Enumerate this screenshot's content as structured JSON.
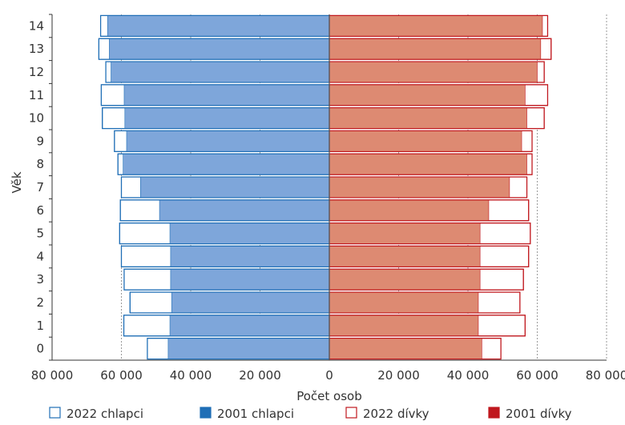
{
  "chart_data": {
    "type": "bar",
    "orientation": "horizontal",
    "chart_style": "population-pyramid",
    "xlabel": "Počet osob",
    "ylabel": "Věk",
    "categories": [
      "0",
      "1",
      "2",
      "3",
      "4",
      "5",
      "6",
      "7",
      "8",
      "9",
      "10",
      "11",
      "12",
      "13",
      "14"
    ],
    "xlim": [
      -80000,
      80000
    ],
    "x_ticks": [
      {
        "value": -80000,
        "label": "80 000"
      },
      {
        "value": -60000,
        "label": "60 000"
      },
      {
        "value": -40000,
        "label": "40 000"
      },
      {
        "value": -20000,
        "label": "20 000"
      },
      {
        "value": 0,
        "label": "0"
      },
      {
        "value": 20000,
        "label": "20 000"
      },
      {
        "value": 40000,
        "label": "40 000"
      },
      {
        "value": 60000,
        "label": "60 000"
      },
      {
        "value": 80000,
        "label": "80 000"
      }
    ],
    "grid": "vertical-dashed",
    "legend_position": "bottom",
    "series": [
      {
        "name": "2022 chlapci",
        "side": "left",
        "style": "outline",
        "color": "#1f6eb6",
        "values": [
          52500,
          59300,
          57500,
          59200,
          60000,
          60500,
          60300,
          60000,
          61000,
          62000,
          65500,
          65800,
          64500,
          66500,
          66000
        ]
      },
      {
        "name": "2001 chlapci",
        "side": "left",
        "style": "filled",
        "color": "#1f6eb6",
        "fill": "#7ea6da",
        "values": [
          46500,
          46000,
          45500,
          45800,
          45800,
          46000,
          49000,
          54500,
          59500,
          58500,
          59000,
          59200,
          63000,
          63500,
          64000
        ]
      },
      {
        "name": "2022 dívky",
        "side": "right",
        "style": "outline",
        "color": "#c0181e",
        "values": [
          49500,
          56500,
          55000,
          56000,
          57500,
          58000,
          57500,
          57000,
          58500,
          58500,
          62000,
          63000,
          62000,
          64000,
          63000
        ]
      },
      {
        "name": "2001 dívky",
        "side": "right",
        "style": "filled",
        "color": "#c0181e",
        "fill": "#dd8a72",
        "values": [
          44000,
          43000,
          43000,
          43500,
          43500,
          43500,
          46000,
          52000,
          57000,
          55500,
          57000,
          56500,
          60000,
          61000,
          61500
        ]
      }
    ]
  }
}
